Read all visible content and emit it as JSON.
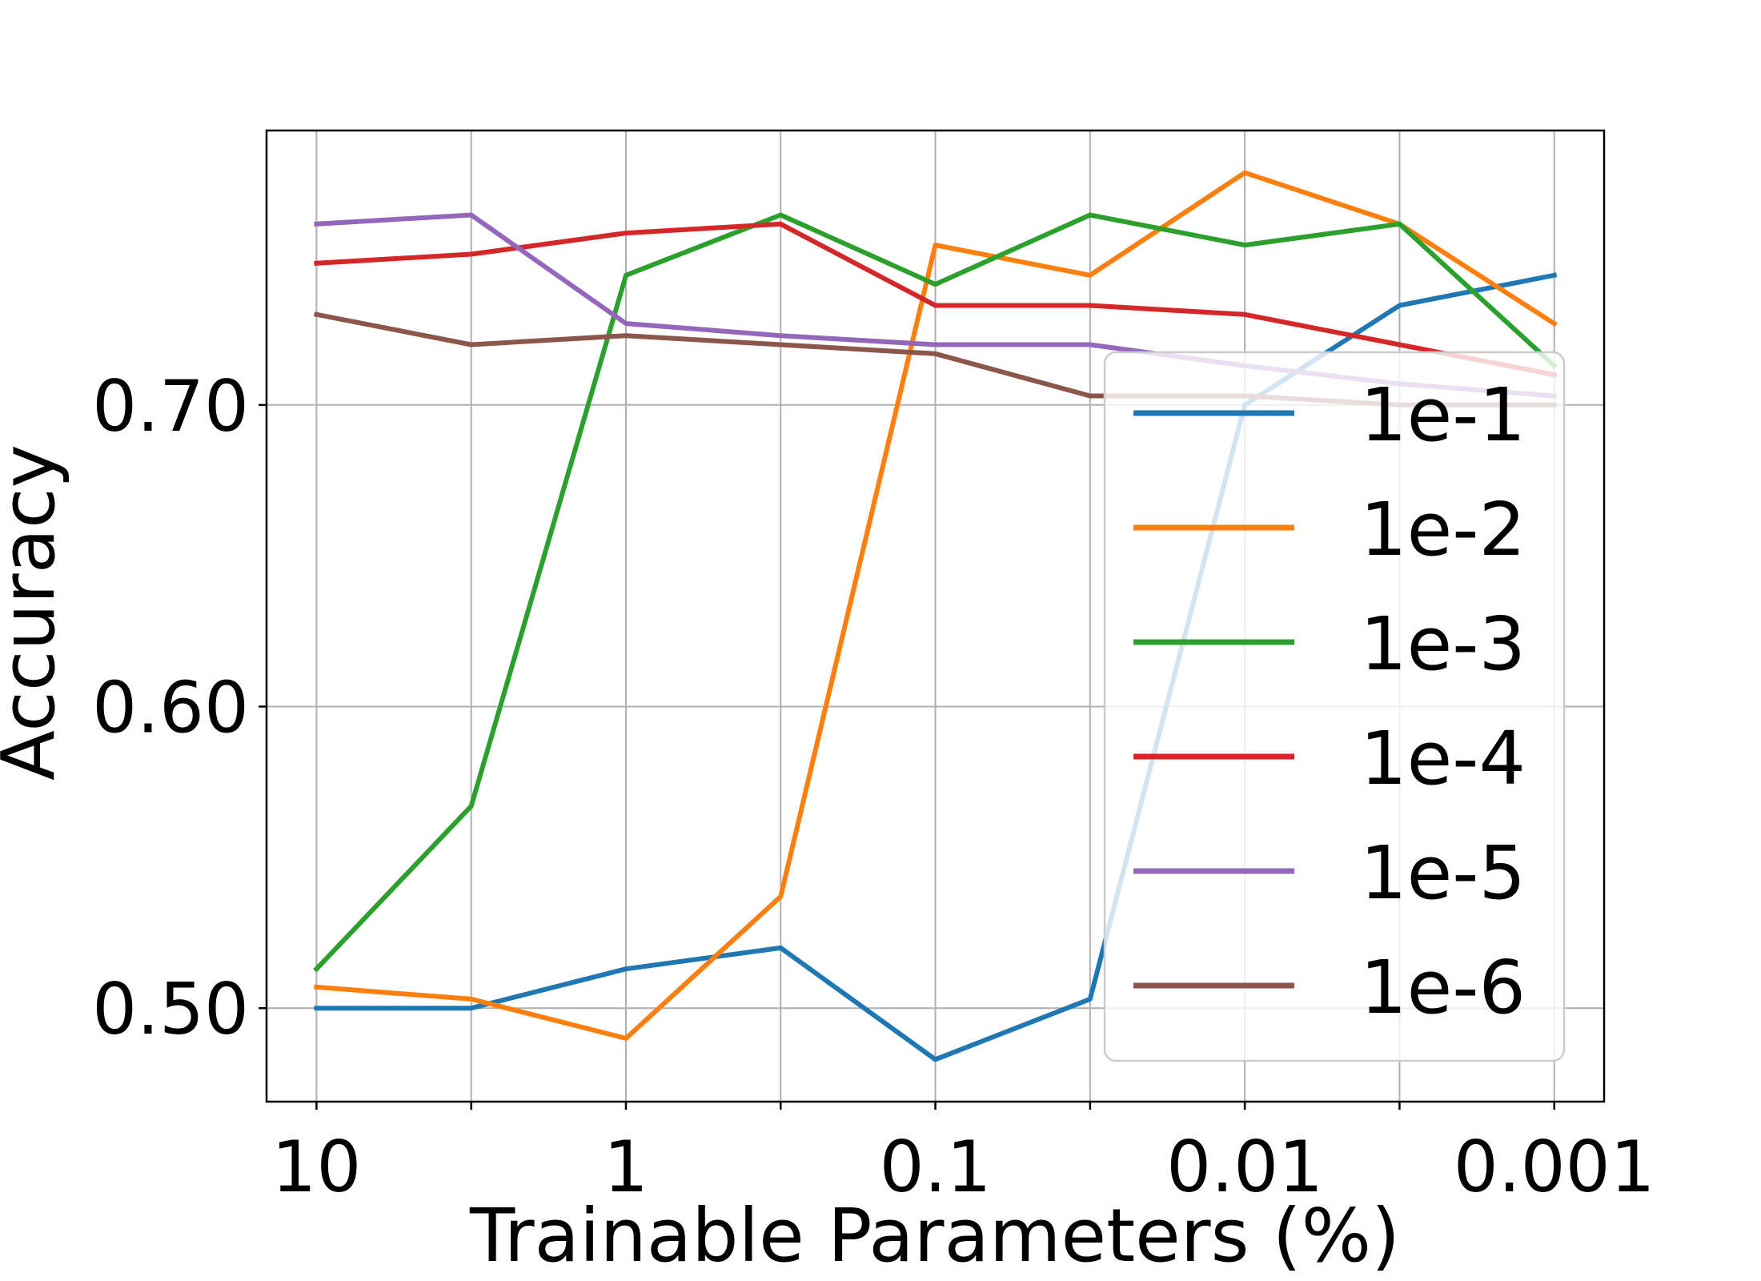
{
  "chart_data": {
    "type": "line",
    "xlabel": "Trainable Parameters (%)",
    "ylabel": "Accuracy",
    "x_tick_labels": [
      "10",
      "1",
      "0.1",
      "0.01",
      "0.001"
    ],
    "y_tick_labels": [
      "0.50",
      "0.60",
      "0.70"
    ],
    "x": [
      10,
      3.162,
      1,
      0.3162,
      0.1,
      0.03162,
      0.01,
      0.003162,
      0.001
    ],
    "x_scale": "log",
    "x_inverted": true,
    "xlim": [
      14.5,
      0.00069
    ],
    "ylim": [
      0.469,
      0.791
    ],
    "y_ticks": [
      0.5,
      0.6,
      0.7
    ],
    "grid": true,
    "legend_position": "lower right",
    "series": [
      {
        "name": "1e-1",
        "color": "#1f77b4",
        "values": [
          0.5,
          0.5,
          0.513,
          0.52,
          0.483,
          0.503,
          0.7,
          0.733,
          0.743
        ]
      },
      {
        "name": "1e-2",
        "color": "#ff7f0e",
        "values": [
          0.507,
          0.503,
          0.49,
          0.537,
          0.753,
          0.743,
          0.777,
          0.76,
          0.727
        ]
      },
      {
        "name": "1e-3",
        "color": "#2ca02c",
        "values": [
          0.513,
          0.567,
          0.743,
          0.763,
          0.74,
          0.763,
          0.753,
          0.76,
          0.713
        ]
      },
      {
        "name": "1e-4",
        "color": "#d62728",
        "values": [
          0.747,
          0.75,
          0.757,
          0.76,
          0.733,
          0.733,
          0.73,
          0.72,
          0.71
        ]
      },
      {
        "name": "1e-5",
        "color": "#9467bd",
        "values": [
          0.76,
          0.763,
          0.727,
          0.723,
          0.72,
          0.72,
          0.713,
          0.707,
          0.703
        ]
      },
      {
        "name": "1e-6",
        "color": "#8c564b",
        "values": [
          0.73,
          0.72,
          0.723,
          0.72,
          0.717,
          0.703,
          0.703,
          0.7,
          0.7
        ]
      }
    ]
  }
}
